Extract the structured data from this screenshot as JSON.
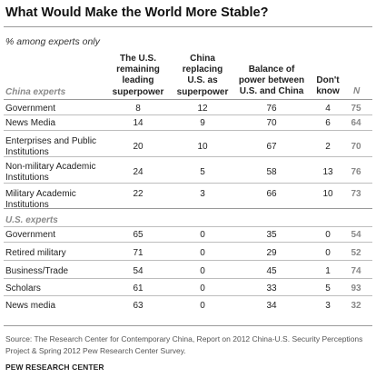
{
  "chart_data": {
    "type": "table",
    "title": "What Would Make the World More Stable?",
    "subtitle": "% among experts only",
    "columns": [
      "The U.S. remaining leading superpower",
      "China replacing U.S. as superpower",
      "Balance of power between U.S. and China",
      "Don't know",
      "N"
    ],
    "groups": [
      {
        "name": "China experts",
        "rows": [
          {
            "label": "Government",
            "values": [
              "8",
              "12",
              "76",
              "4",
              "75"
            ]
          },
          {
            "label": "News Media",
            "values": [
              "14",
              "9",
              "70",
              "6",
              "64"
            ]
          },
          {
            "label": "Enterprises and Public Institutions",
            "values": [
              "20",
              "10",
              "67",
              "2",
              "70"
            ]
          },
          {
            "label": "Non-military Academic Institutions",
            "values": [
              "24",
              "5",
              "58",
              "13",
              "76"
            ]
          },
          {
            "label": "Military Academic Institutions",
            "values": [
              "22",
              "3",
              "66",
              "10",
              "73"
            ]
          }
        ]
      },
      {
        "name": "U.S. experts",
        "rows": [
          {
            "label": "Government",
            "values": [
              "65",
              "0",
              "35",
              "0",
              "54"
            ]
          },
          {
            "label": "Retired military",
            "values": [
              "71",
              "0",
              "29",
              "0",
              "52"
            ]
          },
          {
            "label": "Business/Trade",
            "values": [
              "54",
              "0",
              "45",
              "1",
              "74"
            ]
          },
          {
            "label": "Scholars",
            "values": [
              "61",
              "0",
              "33",
              "5",
              "93"
            ]
          },
          {
            "label": "News media",
            "values": [
              "63",
              "0",
              "34",
              "3",
              "32"
            ]
          }
        ]
      }
    ]
  },
  "header": {
    "col1": [
      "The U.S.",
      "remaining",
      "leading",
      "superpower"
    ],
    "col2": [
      "China",
      "replacing",
      "U.S. as",
      "superpower"
    ],
    "col3": [
      "Balance of",
      "power between",
      "U.S. and China"
    ],
    "col4": [
      "Don't",
      "know"
    ],
    "n": "N"
  },
  "source": "Source: The Research Center for Contemporary China, Report on 2012 China-U.S. Security Perceptions Project & Spring 2012 Pew Research Center Survey.",
  "credit": "PEW RESEARCH CENTER"
}
